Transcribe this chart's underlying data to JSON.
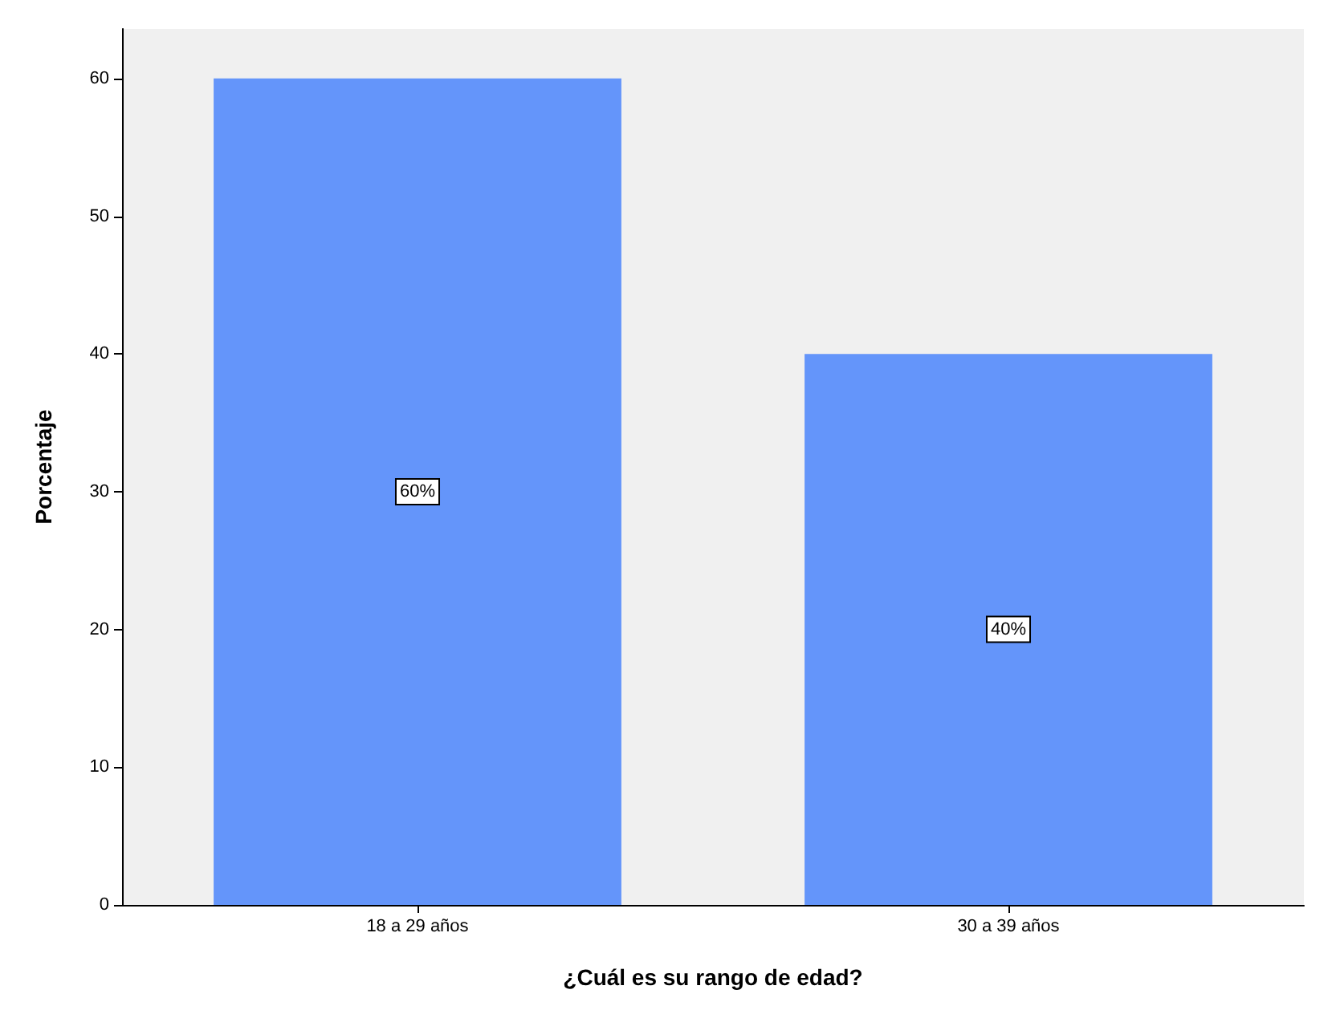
{
  "chart_data": {
    "type": "bar",
    "xlabel": "¿Cuál es su rango de edad?",
    "ylabel": "Porcentaje",
    "categories": [
      "18 a 29 años",
      "30 a 39 años"
    ],
    "values": [
      60,
      40
    ],
    "value_labels": [
      "60%",
      "40%"
    ],
    "color": "#6495fa",
    "ylim": [
      0,
      63.6
    ],
    "yticks": [
      0,
      10,
      20,
      30,
      40,
      50,
      60
    ],
    "grid": false
  }
}
